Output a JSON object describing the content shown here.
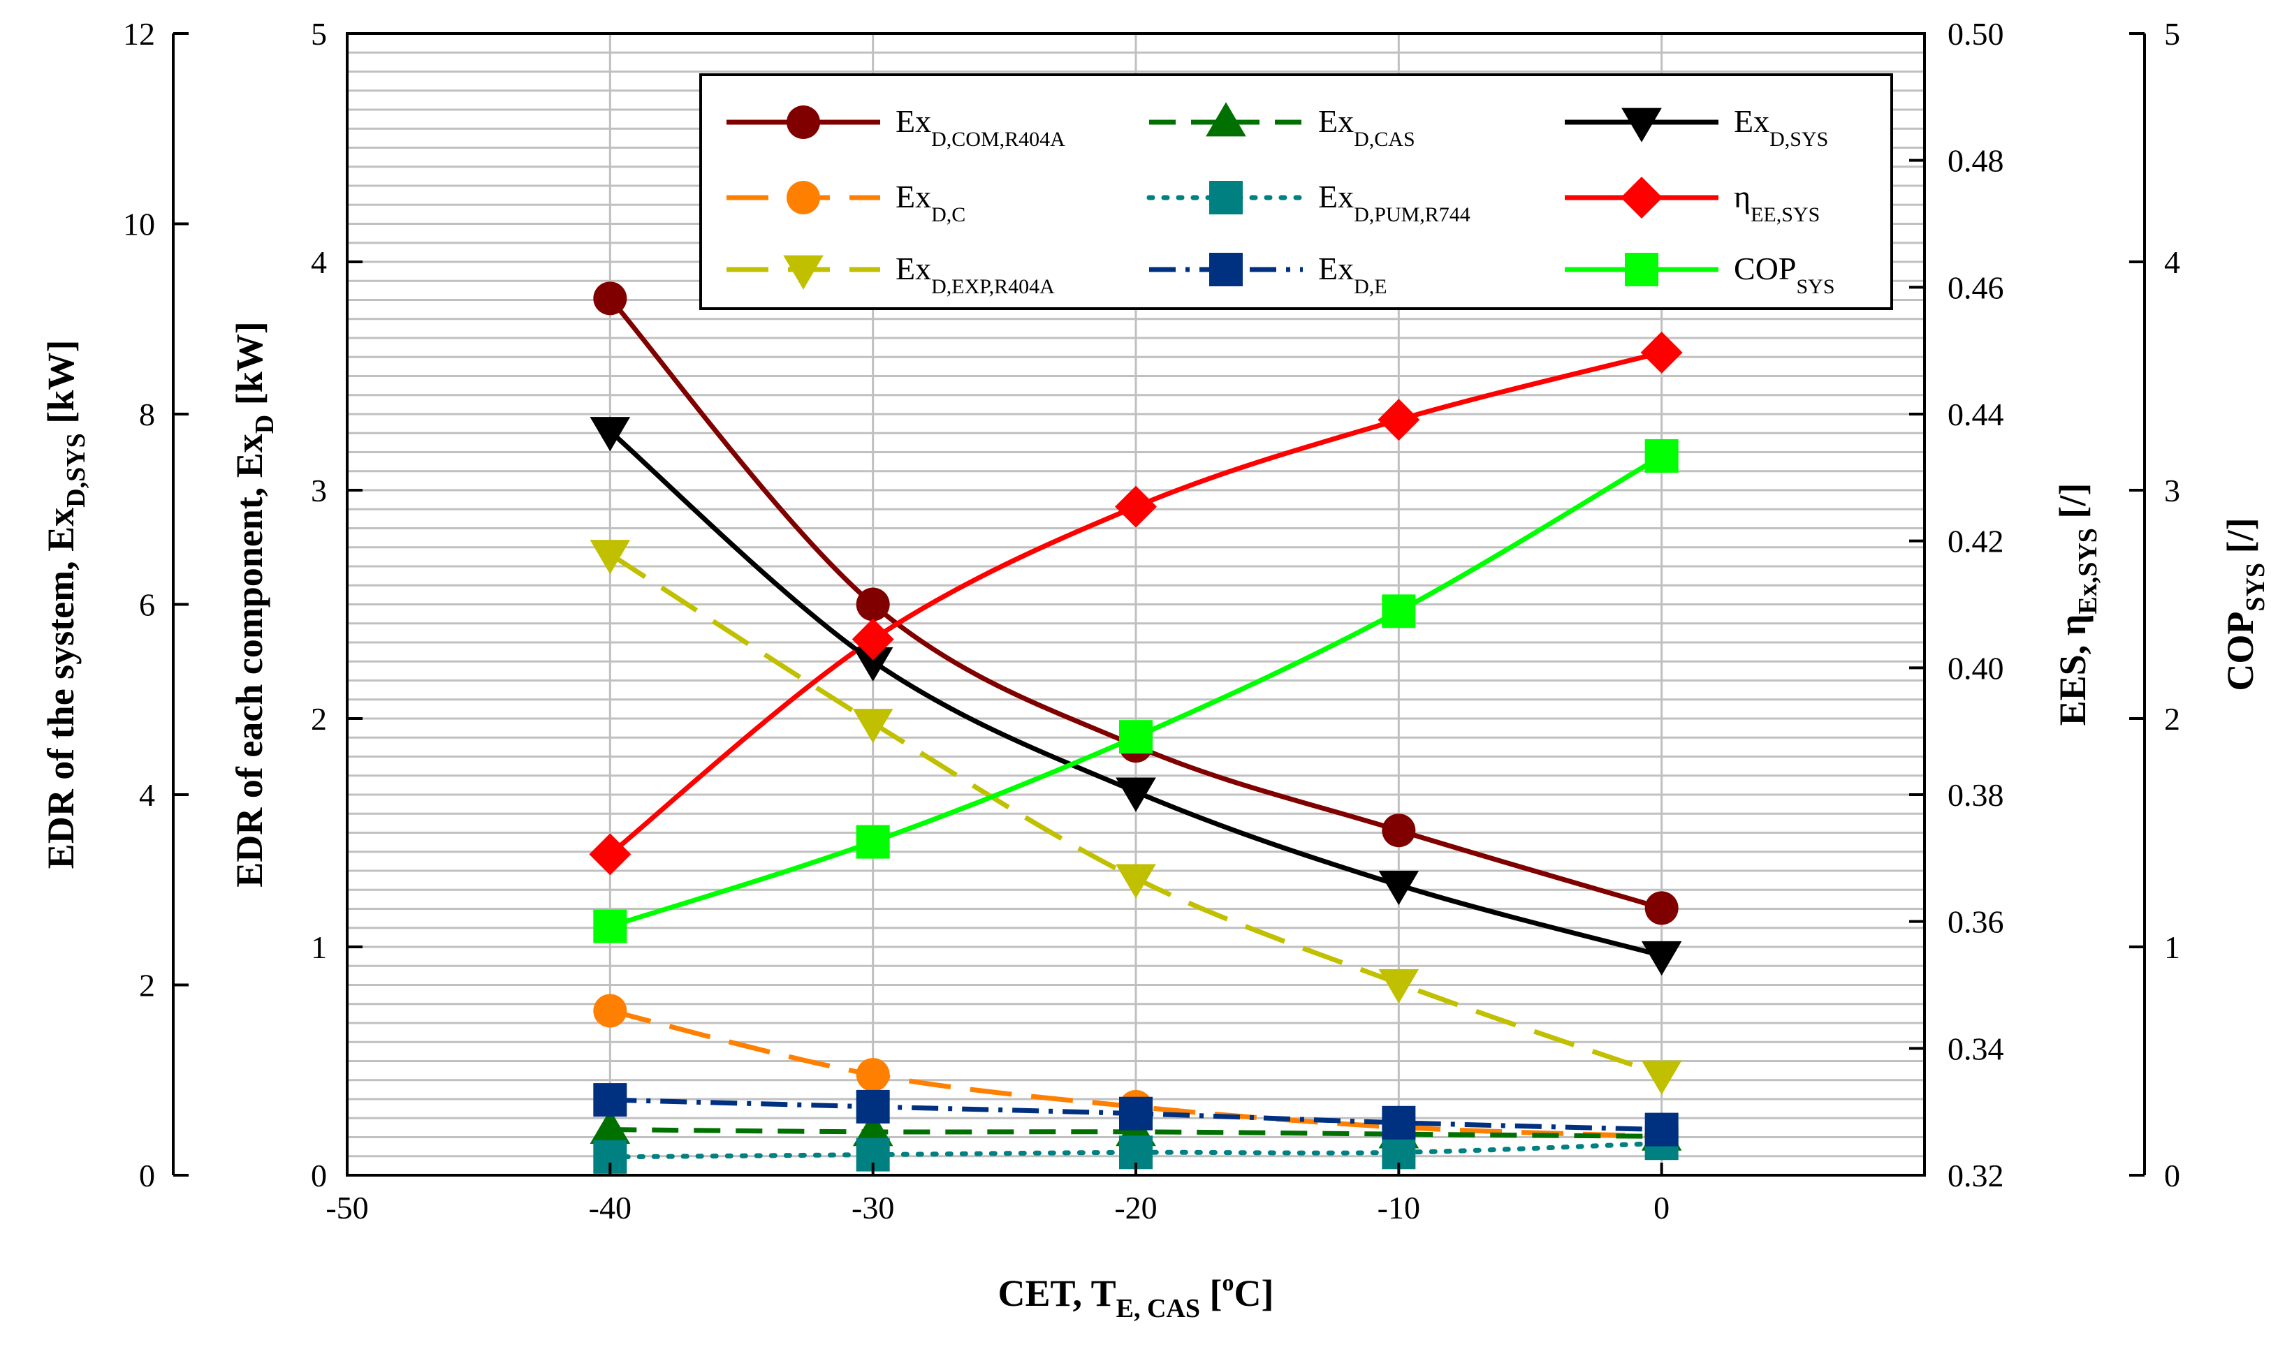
{
  "chart_data": {
    "type": "line",
    "title": "",
    "x": [
      -40,
      -30,
      -20,
      -10,
      0
    ],
    "xlim": [
      -50,
      10
    ],
    "xticks": [
      -50,
      -40,
      -30,
      -20,
      -10,
      0
    ],
    "xlabel": {
      "main": "CET, T",
      "sub": "E, CAS",
      "tail": " [",
      "sup": "o",
      "end": "C]"
    },
    "axes": {
      "sys": {
        "label_main": "EDR of the system, Ex",
        "label_sub": "D,SYS",
        "label_tail": " [kW]",
        "lim": [
          0,
          12
        ],
        "ticks": [
          0,
          2,
          4,
          6,
          8,
          10,
          12
        ]
      },
      "comp": {
        "label_main": "EDR of each component, Ex",
        "label_sub": "D",
        "label_tail": " [kW]",
        "lim": [
          0,
          5
        ],
        "ticks": [
          0,
          1,
          2,
          3,
          4,
          5
        ]
      },
      "ees": {
        "label_main": "EES, η",
        "label_sub": "Ex,SYS",
        "label_tail": " [/]",
        "lim": [
          0.32,
          0.5
        ],
        "ticks": [
          "0.32",
          "0.34",
          "0.36",
          "0.38",
          "0.40",
          "0.42",
          "0.44",
          "0.46",
          "0.48",
          "0.50"
        ]
      },
      "cop": {
        "label_main": "COP",
        "label_sub": "SYS",
        "label_tail": " [/]",
        "lim": [
          0,
          5
        ],
        "ticks": [
          0,
          1,
          2,
          3,
          4,
          5
        ]
      }
    },
    "series": [
      {
        "key": "com",
        "name": "Ex",
        "sub": "D,COM,R404A",
        "axis": "comp",
        "values": [
          3.84,
          2.5,
          1.88,
          1.51,
          1.17
        ],
        "color": "#800000",
        "marker": "circle",
        "dash": "solid"
      },
      {
        "key": "c",
        "name": "Ex",
        "sub": "D,C",
        "axis": "comp",
        "values": [
          0.72,
          0.44,
          0.3,
          0.21,
          0.17
        ],
        "color": "#ff8000",
        "marker": "circle",
        "dash": "long"
      },
      {
        "key": "exp",
        "name": "Ex",
        "sub": "D,EXP,R404A",
        "axis": "comp",
        "values": [
          2.72,
          1.98,
          1.3,
          0.84,
          0.44
        ],
        "color": "#c0c000",
        "marker": "triangle-down",
        "dash": "long"
      },
      {
        "key": "cas",
        "name": "Ex",
        "sub": "D,CAS",
        "axis": "comp",
        "values": [
          0.2,
          0.19,
          0.19,
          0.18,
          0.17
        ],
        "color": "#007000",
        "marker": "triangle-up",
        "dash": "medium"
      },
      {
        "key": "pum",
        "name": "Ex",
        "sub": "D,PUM,R744",
        "axis": "comp",
        "values": [
          0.08,
          0.09,
          0.1,
          0.1,
          0.14
        ],
        "color": "#008080",
        "marker": "square",
        "dash": "dot"
      },
      {
        "key": "e",
        "name": "Ex",
        "sub": "D,E",
        "axis": "comp",
        "values": [
          0.33,
          0.3,
          0.27,
          0.23,
          0.2
        ],
        "color": "#003080",
        "marker": "square",
        "dash": "dashdot"
      },
      {
        "key": "sys",
        "name": "Ex",
        "sub": "D,SYS",
        "axis": "sys",
        "values": [
          7.82,
          5.4,
          4.03,
          3.05,
          2.31
        ],
        "color": "#000000",
        "marker": "triangle-down",
        "dash": "solid"
      },
      {
        "key": "eta",
        "name": "η",
        "sub": "EE,SYS",
        "axis": "ees",
        "values": [
          0.3706,
          0.4045,
          0.4254,
          0.4391,
          0.4497
        ],
        "color": "#ff0000",
        "marker": "diamond",
        "dash": "solid"
      },
      {
        "key": "cop",
        "name": "COP",
        "sub": "SYS",
        "axis": "cop",
        "values": [
          1.09,
          1.46,
          1.92,
          2.47,
          3.15
        ],
        "color": "#00ff00",
        "marker": "square",
        "dash": "solid"
      }
    ],
    "legend_position": "top-right",
    "grid": true
  }
}
